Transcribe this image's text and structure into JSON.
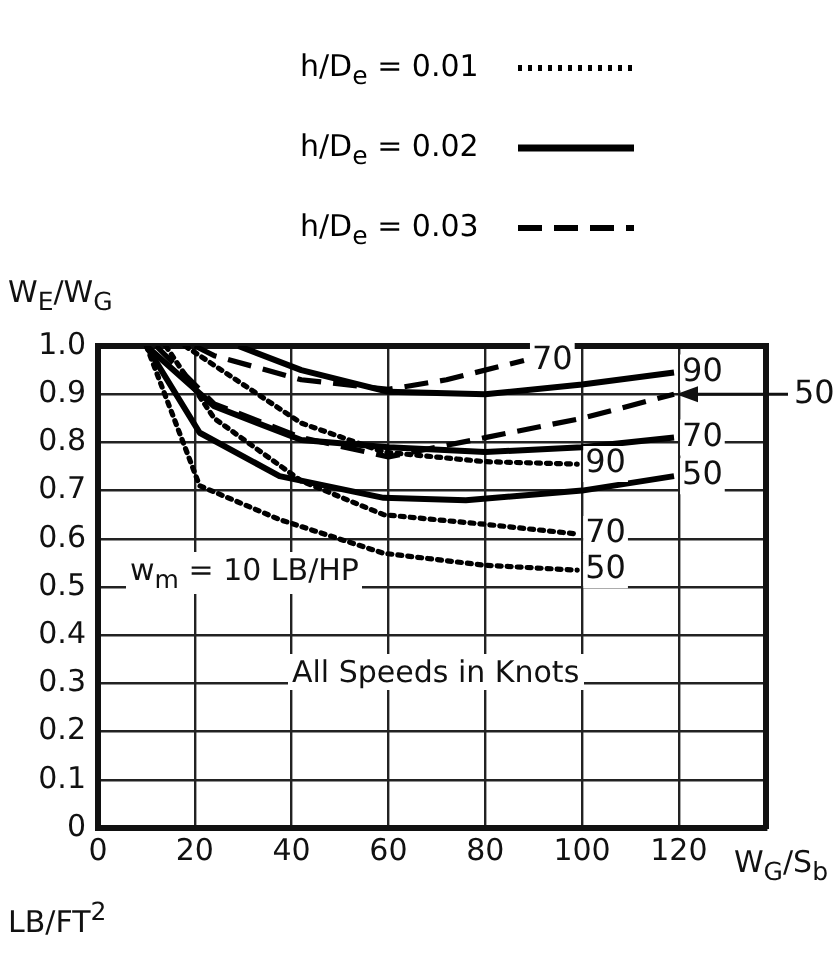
{
  "chart_data": {
    "type": "line",
    "xlabel": "W$_{G}$/S$_{b}$",
    "ylabel": "W$_{E}$/W$_{G}$",
    "xlim": [
      0,
      138
    ],
    "xticks": [
      0,
      20,
      40,
      60,
      80,
      100,
      120
    ],
    "ylim": [
      0,
      1
    ],
    "yticks": [
      0,
      0.1,
      0.2,
      0.3,
      0.4,
      0.5,
      0.6,
      0.7,
      0.8,
      0.9,
      {
        "value": 1,
        "label": "1.0"
      }
    ],
    "grid": true,
    "legend": "top",
    "marker": "none",
    "series": [
      {
        "name": "h/D$_{e}$ = 0.01",
        "color": "#000000",
        "line_style": "dotted",
        "x": [
          10,
          21,
          37.5,
          59,
          80,
          99
        ],
        "values": [
          1.0,
          0.71,
          0.64,
          0.57,
          0.545,
          0.535
        ]
      },
      {
        "color": "#000000",
        "line_style": "dotted",
        "x": [
          14,
          24,
          42,
          59,
          80,
          99
        ],
        "values": [
          1.0,
          0.85,
          0.72,
          0.65,
          0.63,
          0.61
        ]
      },
      {
        "color": "#000000",
        "line_style": "dotted",
        "x": [
          18,
          24,
          42,
          59,
          80,
          99
        ],
        "values": [
          1.0,
          0.96,
          0.84,
          0.78,
          0.76,
          0.755
        ]
      },
      {
        "name": "h/D$_{e}$ = 0.02",
        "color": "#000000",
        "line_style": "solid",
        "x": [
          10,
          21,
          37.5,
          59,
          76,
          100,
          119
        ],
        "values": [
          1.0,
          0.82,
          0.73,
          0.685,
          0.68,
          0.7,
          0.73
        ]
      },
      {
        "color": "#000000",
        "line_style": "solid",
        "x": [
          10,
          24,
          42,
          60,
          80,
          100,
          119
        ],
        "values": [
          1.0,
          0.875,
          0.805,
          0.79,
          0.78,
          0.79,
          0.81
        ]
      },
      {
        "color": "#000000",
        "line_style": "solid",
        "x": [
          29,
          42,
          60,
          80,
          100,
          119
        ],
        "values": [
          1.0,
          0.95,
          0.905,
          0.9,
          0.92,
          0.945
        ]
      },
      {
        "name": "h/D$_{e}$ = 0.03",
        "color": "#000000",
        "line_style": "dashed",
        "x": [
          12,
          24,
          42,
          60,
          80,
          100,
          119
        ],
        "values": [
          1.0,
          0.88,
          0.81,
          0.77,
          0.81,
          0.85,
          0.9
        ]
      },
      {
        "color": "#000000",
        "line_style": "dashed",
        "x": [
          20,
          24,
          42,
          60,
          72,
          88
        ],
        "values": [
          1.0,
          0.98,
          0.93,
          0.91,
          0.93,
          0.97
        ]
      }
    ],
    "annotations": [
      {
        "text": "50",
        "x": 99,
        "y": 0.535
      },
      {
        "text": "70",
        "x": 99,
        "y": 0.61
      },
      {
        "text": "90",
        "x": 99,
        "y": 0.755
      },
      {
        "text": "50",
        "x": 119,
        "y": 0.73
      },
      {
        "text": "70",
        "x": 119,
        "y": 0.81
      },
      {
        "text": "90",
        "x": 119,
        "y": 0.945
      },
      {
        "text": "70",
        "x": 88,
        "y": 0.97
      },
      {
        "text": "50",
        "x": 119,
        "y": 0.9
      },
      "w$_{m}$ = 10 LB/HP",
      "All Speeds in Knots",
      "LB/FT$^{2}$"
    ]
  }
}
